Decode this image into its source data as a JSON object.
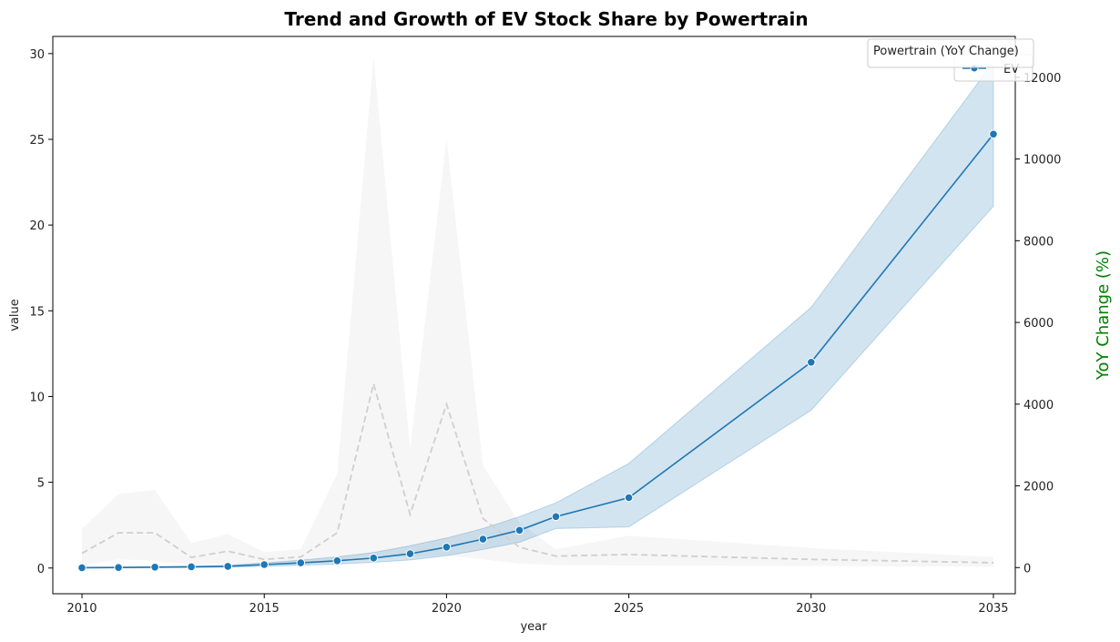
{
  "chart_data": {
    "type": "line",
    "title": "Trend and Growth of EV Stock Share by Powertrain",
    "xlabel": "year",
    "ylabel": "value",
    "y2label": "YoY Change (%)",
    "xlim": [
      2009.2,
      2035.6
    ],
    "ylim": [
      -1.5,
      31.0
    ],
    "y2lim": [
      -640,
      13000
    ],
    "xticks": [
      2010,
      2015,
      2020,
      2025,
      2030,
      2035
    ],
    "yticks": [
      0,
      5,
      10,
      15,
      20,
      25,
      30
    ],
    "y2ticks": [
      0,
      2000,
      4000,
      6000,
      8000,
      10000,
      12000
    ],
    "grid": false,
    "legend": {
      "placement": "top-right",
      "entries": [
        {
          "name": "Powertrain (YoY Change)",
          "color": "#ffffff"
        },
        {
          "name": "EV",
          "color": "#1f77b4"
        }
      ]
    },
    "series": [
      {
        "name": "EV",
        "axis": "left",
        "color": "#1f77b4",
        "x": [
          2010,
          2011,
          2012,
          2013,
          2014,
          2015,
          2016,
          2017,
          2018,
          2019,
          2020,
          2021,
          2022,
          2023,
          2025,
          2030,
          2035
        ],
        "y": [
          0.02,
          0.03,
          0.05,
          0.07,
          0.1,
          0.2,
          0.3,
          0.42,
          0.58,
          0.83,
          1.22,
          1.68,
          2.2,
          3.0,
          4.1,
          12.0,
          25.3
        ],
        "band_low": [
          0.01,
          0.01,
          0.02,
          0.03,
          0.05,
          0.1,
          0.16,
          0.23,
          0.33,
          0.47,
          0.72,
          1.08,
          1.5,
          2.3,
          2.4,
          9.2,
          21.1
        ],
        "band_high": [
          0.04,
          0.05,
          0.08,
          0.11,
          0.16,
          0.3,
          0.46,
          0.65,
          0.9,
          1.3,
          1.75,
          2.3,
          3.0,
          3.8,
          6.1,
          15.2,
          29.5
        ]
      },
      {
        "name": "YoY Change",
        "axis": "right",
        "color": "#cfcfcf",
        "x": [
          2010,
          2011,
          2012,
          2013,
          2014,
          2015,
          2016,
          2017,
          2018,
          2019,
          2020,
          2021,
          2022,
          2023,
          2025,
          2030,
          2035
        ],
        "y": [
          350,
          850,
          850,
          250,
          400,
          200,
          260,
          850,
          4500,
          1300,
          4000,
          1200,
          500,
          280,
          320,
          200,
          120
        ],
        "band_low": [
          60,
          200,
          170,
          80,
          90,
          60,
          70,
          150,
          300,
          250,
          300,
          200,
          100,
          60,
          50,
          40,
          20
        ],
        "band_high": [
          950,
          1800,
          1900,
          600,
          820,
          380,
          450,
          2300,
          12500,
          2900,
          10500,
          2500,
          1100,
          450,
          780,
          480,
          260
        ]
      }
    ]
  }
}
